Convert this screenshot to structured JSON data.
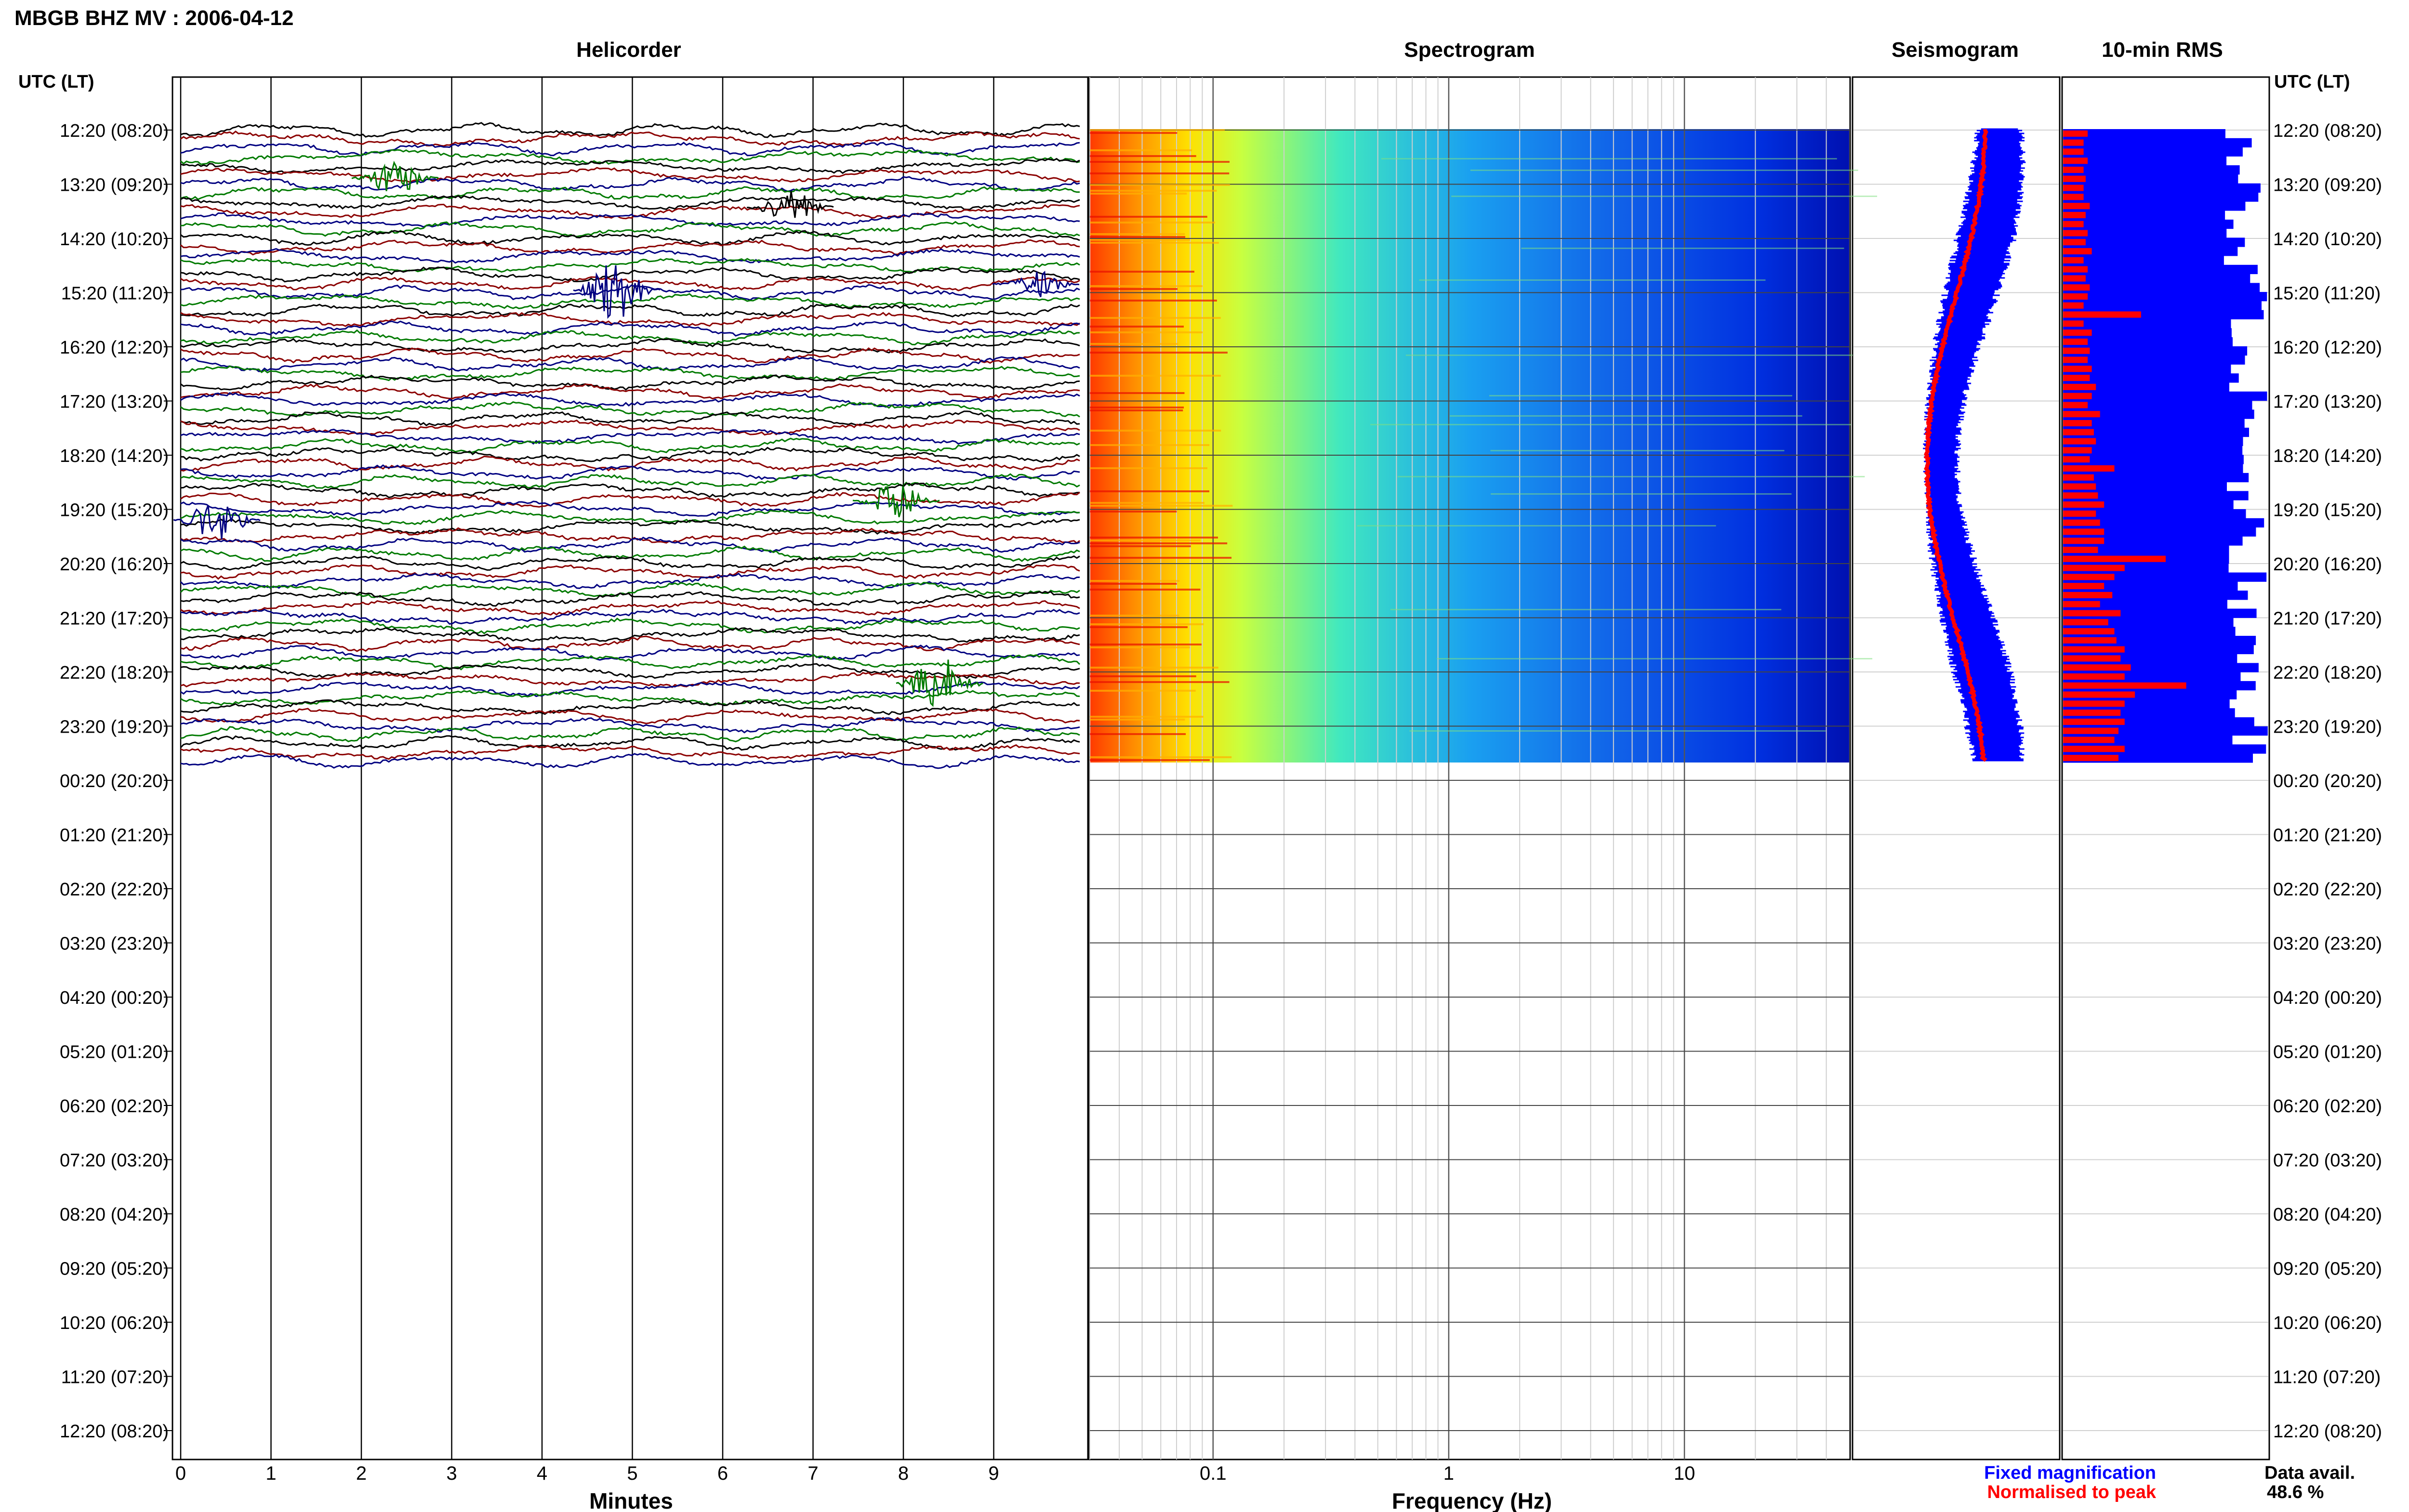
{
  "header": {
    "title": "MBGB BHZ MV : 2006-04-12",
    "utc_label_left": "UTC (LT)",
    "utc_label_right": "UTC (LT)"
  },
  "panels": {
    "helicorder_title": "Helicorder",
    "spectrogram_title": "Spectrogram",
    "seismogram_title": "Seismogram",
    "rms_title": "10-min RMS"
  },
  "footer": {
    "minutes_label": "Minutes",
    "frequency_label": "Frequency (Hz)",
    "legend_fixed": "Fixed magnification",
    "legend_normalised": "Normalised to peak",
    "data_avail_label": "Data avail.",
    "data_avail_value": "48.6 %"
  },
  "colors": {
    "trace_black": "#000000",
    "trace_red": "#8b0000",
    "trace_blue": "#000080",
    "trace_green": "#007a00",
    "fixed_blue": "#0000ff",
    "normalised_red": "#ff0000",
    "rms_fill": "#0000ff"
  },
  "chart_data": [
    {
      "type": "line",
      "name": "helicorder",
      "title": "Helicorder",
      "xlabel": "Minutes",
      "x_ticks": [
        0,
        1,
        2,
        3,
        4,
        5,
        6,
        7,
        8,
        9
      ],
      "xlim": [
        0,
        10
      ],
      "row_labels": [
        "12:20 (08:20)",
        "13:20 (09:20)",
        "14:20 (10:20)",
        "15:20 (11:20)",
        "16:20 (12:20)",
        "17:20 (13:20)",
        "18:20 (14:20)",
        "19:20 (15:20)",
        "20:20 (16:20)",
        "21:20 (17:20)",
        "22:20 (18:20)",
        "23:20 (19:20)",
        "00:20 (20:20)",
        "01:20 (21:20)",
        "02:20 (22:20)",
        "03:20 (23:20)",
        "04:20 (00:20)",
        "05:20 (01:20)",
        "06:20 (02:20)",
        "07:20 (03:20)",
        "08:20 (04:20)",
        "09:20 (05:20)",
        "10:20 (06:20)",
        "11:20 (07:20)",
        "12:20 (08:20)"
      ],
      "trace_colors_cycle": [
        "black",
        "red",
        "blue",
        "green"
      ],
      "traces_with_data_hours": 11.7
    },
    {
      "type": "heatmap",
      "name": "spectrogram",
      "title": "Spectrogram",
      "xlabel": "Frequency (Hz)",
      "x_scale": "log",
      "xlim": [
        0.03,
        50
      ],
      "x_tick_labels": [
        "0.1",
        "1",
        "10"
      ],
      "colormap": "jet",
      "trend": "high power at low frequencies, decreasing toward 50 Hz"
    },
    {
      "type": "line",
      "name": "seismogram",
      "title": "Seismogram",
      "series": [
        {
          "name": "Fixed magnification",
          "color": "#0000ff"
        },
        {
          "name": "Normalised to peak",
          "color": "#ff0000"
        }
      ]
    },
    {
      "type": "bar",
      "name": "rms",
      "title": "10-min RMS",
      "orientation": "horizontal",
      "rows_with_data": 70,
      "relative_values_red": [
        0.12,
        0.1,
        0.1,
        0.12,
        0.1,
        0.11,
        0.1,
        0.1,
        0.13,
        0.11,
        0.1,
        0.12,
        0.11,
        0.14,
        0.1,
        0.12,
        0.11,
        0.13,
        0.12,
        0.1,
        0.38,
        0.1,
        0.14,
        0.12,
        0.13,
        0.12,
        0.14,
        0.13,
        0.16,
        0.14,
        0.12,
        0.18,
        0.14,
        0.15,
        0.16,
        0.14,
        0.13,
        0.25,
        0.15,
        0.16,
        0.17,
        0.2,
        0.16,
        0.18,
        0.2,
        0.2,
        0.17,
        0.5,
        0.3,
        0.25,
        0.2,
        0.24,
        0.18,
        0.28,
        0.22,
        0.25,
        0.26,
        0.3,
        0.28,
        0.33,
        0.3,
        0.6,
        0.35,
        0.3,
        0.28,
        0.3,
        0.27,
        0.25,
        0.3,
        0.27
      ]
    }
  ]
}
